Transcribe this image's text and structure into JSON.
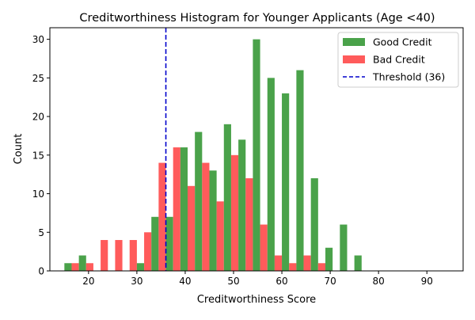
{
  "chart_data": {
    "type": "bar",
    "title": "Creditworthiness Histogram for Younger Applicants (Age <40)",
    "xlabel": "Creditworthiness Score",
    "ylabel": "Count",
    "xlim": [
      12.0,
      97.5
    ],
    "ylim": [
      0,
      31.5
    ],
    "xticks": [
      20,
      30,
      40,
      50,
      60,
      70,
      80,
      90
    ],
    "yticks": [
      0,
      5,
      10,
      15,
      20,
      25,
      30
    ],
    "bin_starts": [
      15,
      18,
      21,
      24,
      27,
      30,
      33,
      36,
      39,
      42,
      45,
      48,
      51,
      54,
      57,
      60,
      63,
      66,
      69,
      72,
      75,
      78,
      81,
      84,
      87,
      90
    ],
    "bin_width": 3,
    "series": [
      {
        "name": "Good Credit",
        "color": "#3b9a3b",
        "values": [
          1,
          2,
          0,
          0,
          0,
          1,
          7,
          7,
          16,
          18,
          13,
          19,
          17,
          30,
          25,
          23,
          26,
          12,
          3,
          6,
          2,
          0,
          0,
          0,
          0,
          0
        ]
      },
      {
        "name": "Bad Credit",
        "color": "#ff4d4d",
        "values": [
          1,
          1,
          4,
          4,
          4,
          5,
          14,
          16,
          11,
          14,
          9,
          15,
          12,
          6,
          2,
          1,
          2,
          1,
          0,
          0,
          0,
          0,
          0,
          0,
          0,
          0
        ]
      }
    ],
    "threshold": {
      "label": "Threshold (36)",
      "value": 36,
      "color": "#0000cc"
    },
    "legend_position": "top-right",
    "grid": false
  }
}
